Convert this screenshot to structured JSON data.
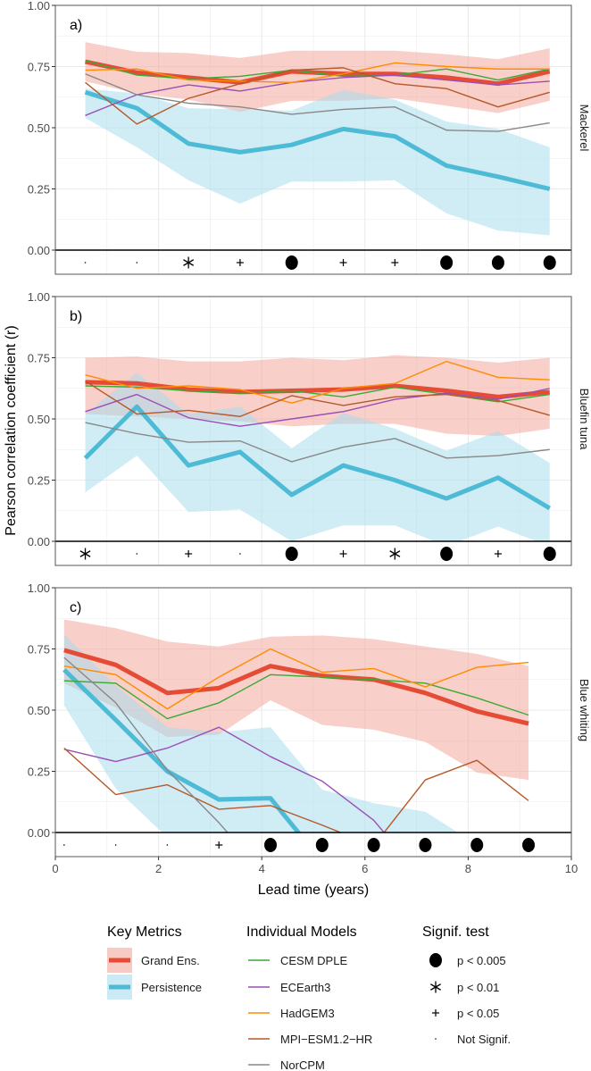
{
  "chart_data": {
    "type": "line",
    "ylabel": "Pearson correlation coefficient (r)",
    "xlabel": "Lead time (years)",
    "xlim": [
      0,
      10
    ],
    "ylim": [
      0,
      1
    ],
    "x_ticks": [
      "0",
      "2",
      "4",
      "6",
      "8",
      "10"
    ],
    "y_ticks": [
      "0.00",
      "0.25",
      "0.50",
      "0.75",
      "1.00"
    ],
    "grid": true,
    "colors": {
      "grand_ens": "#e64b35",
      "grand_ens_band": "#f2a89c",
      "persistence": "#4dbbd5",
      "persistence_band": "#a9dcec",
      "CESM DPLE": "#3aaa35",
      "ECEarth3": "#9b4fb5",
      "HadGEM3": "#ff8c00",
      "MPI-ESM1.2-HR": "#b5582a",
      "NorCPM": "#888888"
    },
    "panels": [
      {
        "label": "a)",
        "species": "Mackerel",
        "x": [
          0.58,
          1.58,
          2.58,
          3.58,
          4.58,
          5.58,
          6.58,
          7.58,
          8.58,
          9.58
        ],
        "grand_ens": {
          "mean": [
            0.77,
            0.725,
            0.705,
            0.685,
            0.73,
            0.72,
            0.72,
            0.705,
            0.68,
            0.73
          ],
          "upper": [
            0.85,
            0.81,
            0.805,
            0.785,
            0.815,
            0.815,
            0.815,
            0.8,
            0.78,
            0.825
          ],
          "lower": [
            0.69,
            0.64,
            0.615,
            0.565,
            0.61,
            0.61,
            0.62,
            0.59,
            0.56,
            0.61
          ]
        },
        "persistence": {
          "mean": [
            0.645,
            0.58,
            0.435,
            0.4,
            0.43,
            0.495,
            0.465,
            0.345,
            0.3,
            0.25
          ],
          "upper": [
            0.66,
            0.64,
            0.58,
            0.575,
            0.57,
            0.655,
            0.615,
            0.525,
            0.495,
            0.42
          ],
          "lower": [
            0.54,
            0.42,
            0.285,
            0.19,
            0.28,
            0.28,
            0.285,
            0.15,
            0.08,
            0.06
          ]
        },
        "models": {
          "CESM DPLE": [
            0.775,
            0.715,
            0.7,
            0.71,
            0.735,
            0.71,
            0.715,
            0.74,
            0.695,
            0.74
          ],
          "ECEarth3": [
            0.55,
            0.635,
            0.675,
            0.65,
            0.685,
            0.705,
            0.715,
            0.695,
            0.675,
            0.69
          ],
          "HadGEM3": [
            0.735,
            0.74,
            0.695,
            0.69,
            0.685,
            0.72,
            0.765,
            0.75,
            0.74,
            0.74
          ],
          "MPI-ESM1.2-HR": [
            0.685,
            0.515,
            0.62,
            0.68,
            0.735,
            0.745,
            0.68,
            0.66,
            0.585,
            0.645
          ],
          "NorCPM": [
            0.72,
            0.635,
            0.6,
            0.585,
            0.555,
            0.575,
            0.585,
            0.49,
            0.485,
            0.52
          ]
        },
        "signif": [
          "ns",
          "ns",
          "p01",
          "p05",
          "p005",
          "p05",
          "p05",
          "p005",
          "p005",
          "p005"
        ]
      },
      {
        "label": "b)",
        "species": "Bluefin tuna",
        "x": [
          0.58,
          1.58,
          2.58,
          3.58,
          4.58,
          5.58,
          6.58,
          7.58,
          8.58,
          9.58
        ],
        "grand_ens": {
          "mean": [
            0.65,
            0.645,
            0.62,
            0.61,
            0.615,
            0.62,
            0.635,
            0.615,
            0.59,
            0.61
          ],
          "upper": [
            0.75,
            0.755,
            0.735,
            0.735,
            0.75,
            0.74,
            0.76,
            0.75,
            0.73,
            0.75
          ],
          "lower": [
            0.52,
            0.51,
            0.5,
            0.49,
            0.47,
            0.48,
            0.48,
            0.44,
            0.43,
            0.46
          ]
        },
        "persistence": {
          "mean": [
            0.34,
            0.55,
            0.31,
            0.365,
            0.19,
            0.31,
            0.25,
            0.175,
            0.26,
            0.135
          ],
          "upper": [
            0.52,
            0.69,
            0.52,
            0.55,
            0.38,
            0.525,
            0.46,
            0.37,
            0.45,
            0.32
          ],
          "lower": [
            0.2,
            0.35,
            0.12,
            0.13,
            0.0,
            0.065,
            0.065,
            -0.02,
            0.06,
            -0.02
          ]
        },
        "models": {
          "CESM DPLE": [
            0.635,
            0.63,
            0.615,
            0.605,
            0.615,
            0.59,
            0.63,
            0.6,
            0.57,
            0.6
          ],
          "ECEarth3": [
            0.53,
            0.6,
            0.505,
            0.47,
            0.5,
            0.53,
            0.58,
            0.605,
            0.58,
            0.625
          ],
          "HadGEM3": [
            0.68,
            0.625,
            0.635,
            0.62,
            0.565,
            0.625,
            0.645,
            0.735,
            0.67,
            0.66
          ],
          "MPI-ESM1.2-HR": [
            0.655,
            0.52,
            0.535,
            0.51,
            0.595,
            0.555,
            0.59,
            0.6,
            0.575,
            0.515
          ],
          "NorCPM": [
            0.485,
            0.44,
            0.405,
            0.41,
            0.325,
            0.385,
            0.42,
            0.34,
            0.35,
            0.375
          ]
        },
        "signif": [
          "p01",
          "ns",
          "p05",
          "ns",
          "p005",
          "p05",
          "p01",
          "p005",
          "p05",
          "p005"
        ]
      },
      {
        "label": "c)",
        "species": "Blue whiting",
        "x": [
          0.17,
          1.17,
          2.17,
          3.17,
          4.17,
          5.17,
          6.17,
          7.17,
          8.17,
          9.17
        ],
        "grand_ens": {
          "mean": [
            0.745,
            0.685,
            0.57,
            0.59,
            0.68,
            0.64,
            0.625,
            0.57,
            0.495,
            0.445
          ],
          "upper": [
            0.87,
            0.835,
            0.78,
            0.76,
            0.8,
            0.805,
            0.79,
            0.76,
            0.73,
            0.68
          ],
          "lower": [
            0.61,
            0.51,
            0.39,
            0.4,
            0.54,
            0.44,
            0.42,
            0.37,
            0.245,
            0.215
          ]
        },
        "persistence": {
          "mean": [
            0.665,
            0.46,
            0.25,
            0.135,
            0.14,
            -0.12,
            null,
            null,
            null,
            null
          ],
          "upper": [
            0.81,
            0.6,
            0.43,
            0.41,
            0.43,
            0.175,
            0.12,
            0.085,
            -0.05,
            null
          ],
          "lower": [
            0.52,
            0.18,
            -0.02,
            -0.2,
            -0.2,
            -0.3,
            -0.3,
            -0.3,
            -0.3,
            null
          ]
        },
        "models": {
          "CESM DPLE": [
            0.62,
            0.61,
            0.465,
            0.53,
            0.645,
            0.635,
            0.625,
            0.61,
            0.55,
            0.48
          ],
          "ECEarth3": [
            0.34,
            0.29,
            0.345,
            0.43,
            0.31,
            0.21,
            0.05,
            -0.2,
            null,
            null
          ],
          "HadGEM3": [
            0.68,
            0.645,
            0.505,
            0.635,
            0.75,
            0.655,
            0.67,
            0.595,
            0.675,
            0.695
          ],
          "MPI-ESM1.2-HR": [
            0.345,
            0.155,
            0.195,
            0.095,
            0.11,
            0.03,
            -0.054,
            0.215,
            0.295,
            0.13
          ],
          "NorCPM": [
            0.715,
            0.53,
            0.255,
            0.04,
            -0.2,
            null,
            null,
            null,
            null,
            null
          ]
        },
        "signif": [
          "ns",
          "ns",
          "ns",
          "p05",
          "p005",
          "p005",
          "p005",
          "p005",
          "p005",
          "p005"
        ]
      }
    ],
    "legend": {
      "key_metrics": {
        "title": "Key Metrics",
        "items": [
          {
            "key": "grand_ens",
            "label": "Grand Ens."
          },
          {
            "key": "persistence",
            "label": "Persistence"
          }
        ]
      },
      "models": {
        "title": "Individual Models",
        "items": [
          "CESM DPLE",
          "ECEarth3",
          "HadGEM3",
          "MPI-ESM1.2-HR",
          "NorCPM"
        ],
        "labels": [
          "CESM DPLE",
          "ECEarth3",
          "HadGEM3",
          "MPI−ESM1.2−HR",
          "NorCPM"
        ]
      },
      "signif": {
        "title": "Signif. test",
        "items": [
          {
            "code": "p005",
            "label": "p < 0.005"
          },
          {
            "code": "p01",
            "label": "p < 0.01"
          },
          {
            "code": "p05",
            "label": "p < 0.05"
          },
          {
            "code": "ns",
            "label": "Not Signif."
          }
        ]
      },
      "placement": "bottom"
    }
  }
}
